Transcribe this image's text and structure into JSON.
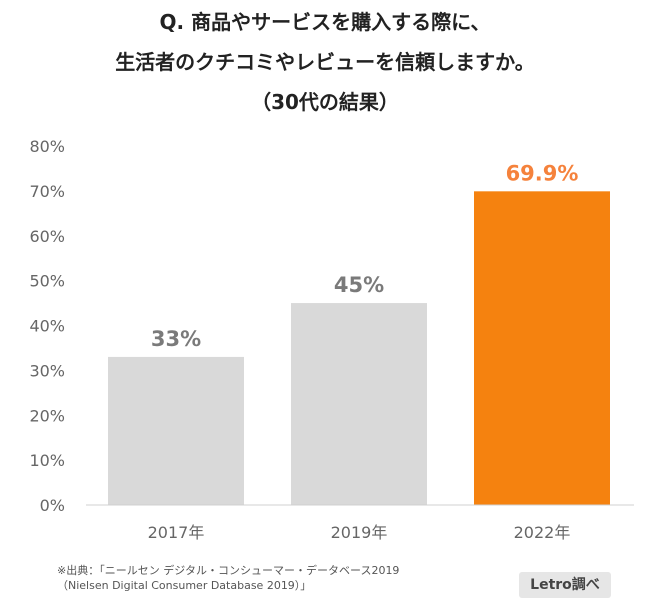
{
  "title_lines": [
    "Q. 商品やサービスを購入する際に、",
    "生活者のクチコミやレビューを信頼しますか。",
    "（30代の結果）"
  ],
  "source_lines": [
    "※出典：「ニールセン デジタル・コンシューマー・データベース2019",
    "（Nielsen Digital Consumer Database 2019）」"
  ],
  "badge": "Letro調べ",
  "colors": {
    "default_bar": "#d9d9d9",
    "highlight_bar": "#f5820f",
    "highlight_label": "#f5823c",
    "default_label": "#7a7a7a",
    "axis_text": "#666666"
  },
  "chart_data": {
    "type": "bar",
    "categories": [
      "2017年",
      "2019年",
      "2022年"
    ],
    "values": [
      33,
      45,
      69.9
    ],
    "value_labels": [
      "33%",
      "45%",
      "69.9%"
    ],
    "highlight_index": 2,
    "yticks": [
      "0%",
      "10%",
      "20%",
      "30%",
      "40%",
      "50%",
      "60%",
      "70%",
      "80%"
    ],
    "ylim": [
      0,
      80
    ],
    "grid": false
  }
}
